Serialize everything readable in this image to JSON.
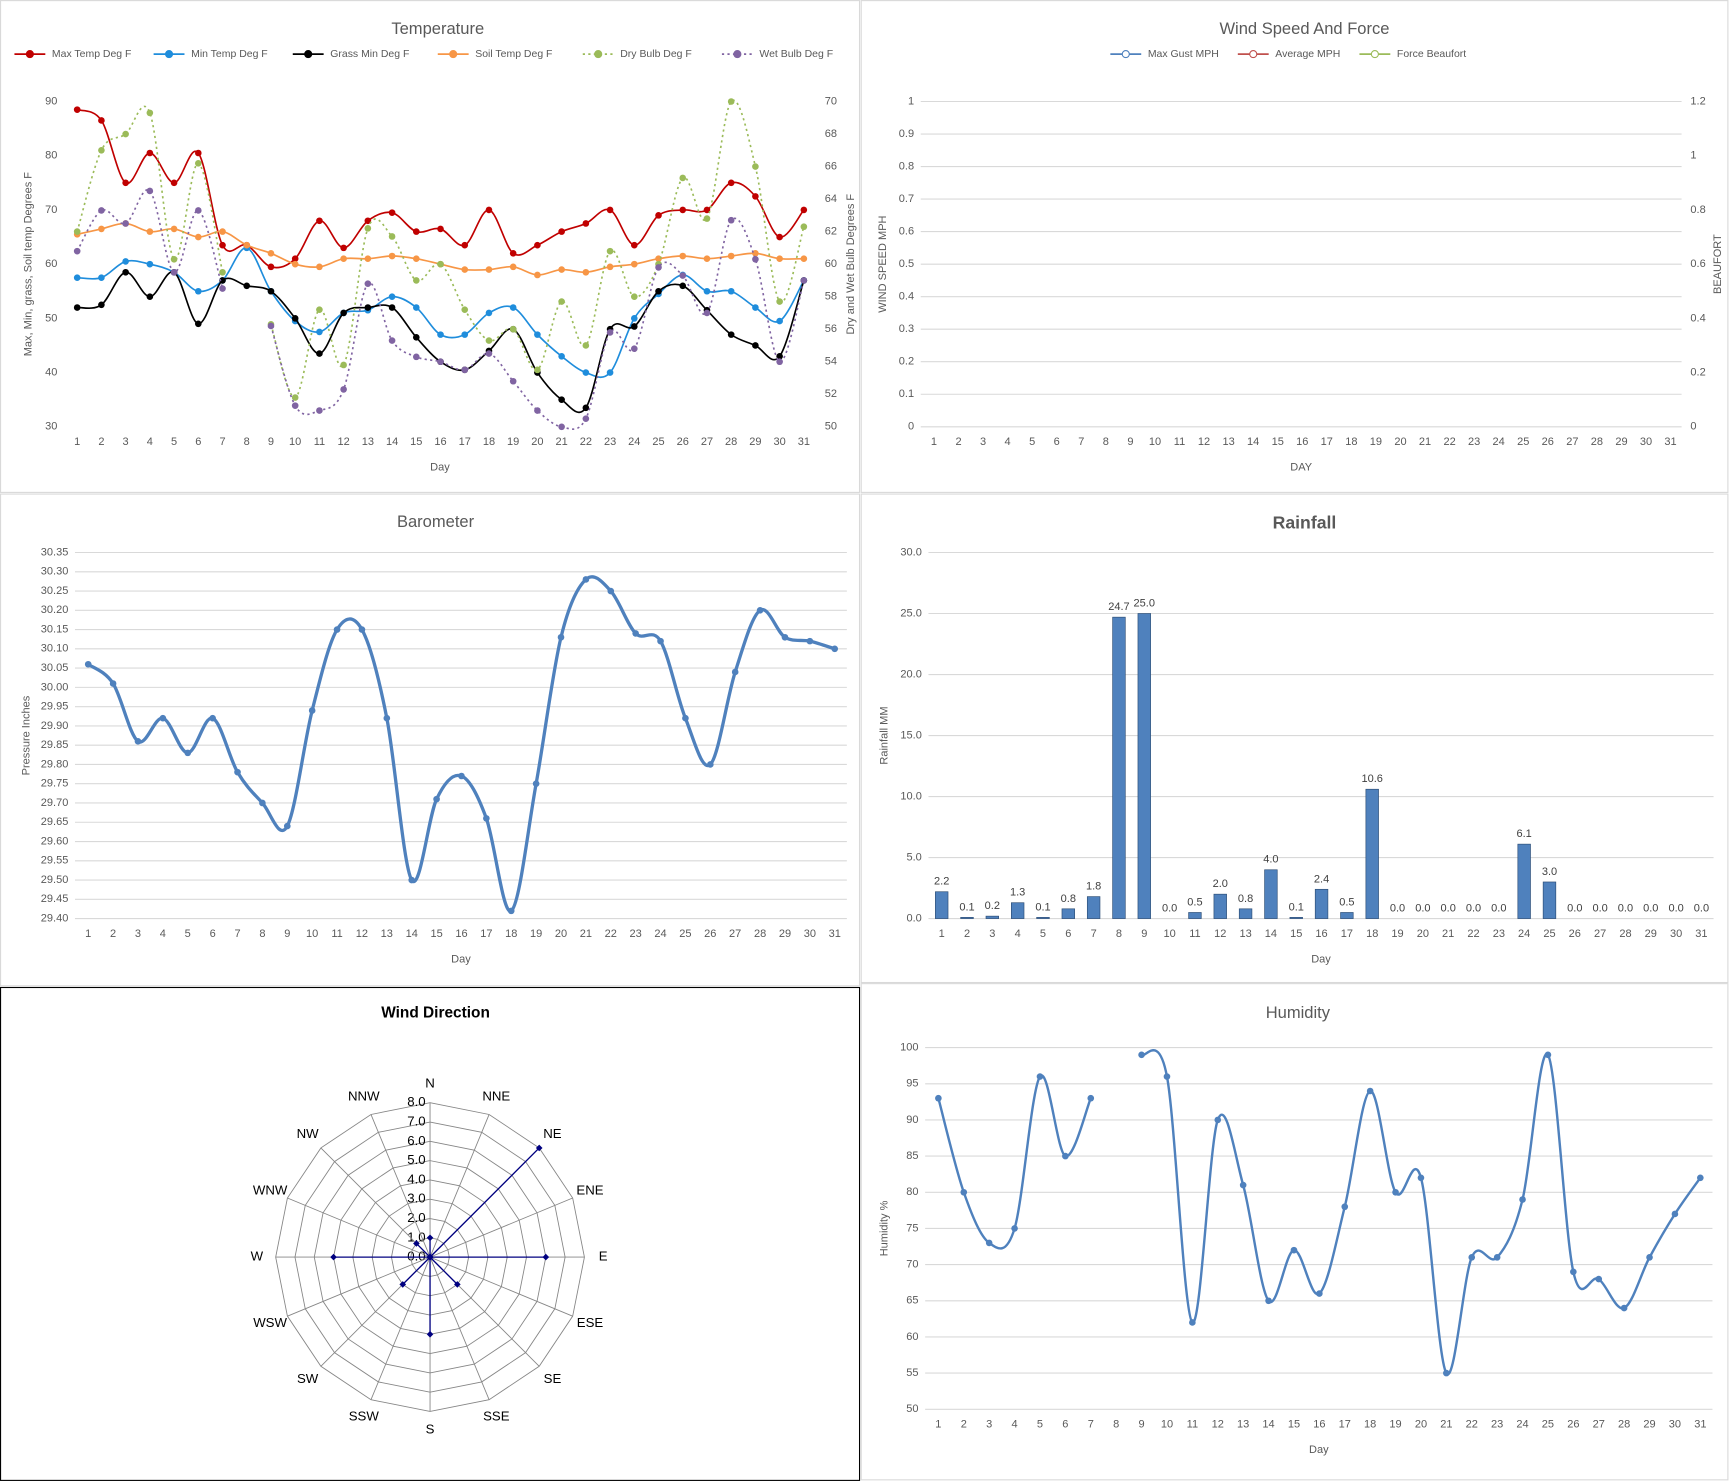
{
  "chart_data": [
    {
      "type": "line",
      "title": "Temperature",
      "x_label": "Day",
      "y_label": "Max, Min, grass, Soil temp Degrees F",
      "y2_label": "Dry and Wet Bulb Degrees F",
      "legend": "top",
      "grid": false,
      "categories": [
        1,
        2,
        3,
        4,
        5,
        6,
        7,
        8,
        9,
        10,
        11,
        12,
        13,
        14,
        15,
        16,
        17,
        18,
        19,
        20,
        21,
        22,
        23,
        24,
        25,
        26,
        27,
        28,
        29,
        30,
        31
      ],
      "ylim": [
        30,
        90
      ],
      "yticks": [
        30,
        40,
        50,
        60,
        70,
        80,
        90
      ],
      "y2lim": [
        50,
        70
      ],
      "y2ticks": [
        50,
        52,
        54,
        56,
        58,
        60,
        62,
        64,
        66,
        68,
        70
      ],
      "series": [
        {
          "name": "Max Temp Deg F",
          "color": "#c00000",
          "values": [
            88.5,
            86.5,
            75,
            80.5,
            75,
            80.5,
            63.5,
            63.5,
            59.5,
            61,
            68,
            63,
            68,
            69.5,
            66,
            66.5,
            63.5,
            70,
            62,
            63.5,
            66,
            67.5,
            70,
            63.5,
            69,
            70,
            70,
            75,
            72.5,
            65,
            70
          ]
        },
        {
          "name": "Min Temp Deg F",
          "color": "#1f8ddc",
          "values": [
            57.5,
            57.5,
            60.5,
            60,
            58.5,
            55,
            57,
            63,
            55,
            49.5,
            47.5,
            51,
            51.5,
            54,
            52,
            47,
            47,
            51,
            52,
            47,
            43,
            40,
            40,
            50,
            54.5,
            58,
            55,
            55,
            52,
            49.5,
            57
          ]
        },
        {
          "name": "Grass Min Deg F",
          "color": "#000000",
          "values": [
            52,
            52.5,
            58.5,
            54,
            58.5,
            49,
            57,
            56,
            55,
            50,
            43.5,
            51,
            52,
            52,
            46.5,
            42,
            40.5,
            44,
            48,
            40,
            35,
            33.5,
            48,
            48.5,
            55,
            56,
            51.5,
            47,
            45,
            43,
            57
          ]
        },
        {
          "name": "Soil Temp Deg F",
          "color": "#f79646",
          "values": [
            65.5,
            66.5,
            67.5,
            66,
            66.5,
            65,
            66,
            63.5,
            62,
            60,
            59.5,
            61,
            61,
            61.5,
            61,
            60,
            59,
            59,
            59.5,
            58,
            59,
            58.5,
            59.5,
            60,
            61,
            61.5,
            61,
            61.5,
            62,
            61,
            61
          ]
        },
        {
          "name": "Dry Bulb Deg F",
          "color": "#9bbb59",
          "dashed": true,
          "axis": "y2",
          "values": [
            62,
            67,
            68,
            69.3,
            60.3,
            66.2,
            59.5,
            null,
            56.3,
            51.8,
            57.2,
            53.8,
            62.2,
            61.7,
            59,
            60,
            57.2,
            55.3,
            56,
            53.5,
            57.7,
            55,
            60.8,
            58,
            60,
            65.3,
            62.8,
            70,
            66,
            57.7,
            62.3
          ]
        },
        {
          "name": "Wet Bulb Deg F",
          "color": "#8064a2",
          "dashed": true,
          "axis": "y2",
          "values": [
            60.8,
            63.3,
            62.5,
            64.5,
            59.5,
            63.3,
            58.5,
            null,
            56.2,
            51.3,
            51,
            52.3,
            58.8,
            55.3,
            54.3,
            54,
            53.5,
            54.5,
            52.8,
            51,
            50,
            50.5,
            55.8,
            54.8,
            59.8,
            59.3,
            57,
            62.7,
            60.3,
            54,
            59
          ]
        }
      ]
    },
    {
      "type": "line",
      "title": "Wind Speed And Force",
      "x_label": "DAY",
      "y_label": "WIND SPEED MPH",
      "y2_label": "BEAUFORT",
      "legend": "top",
      "grid": true,
      "categories": [
        1,
        2,
        3,
        4,
        5,
        6,
        7,
        8,
        9,
        10,
        11,
        12,
        13,
        14,
        15,
        16,
        17,
        18,
        19,
        20,
        21,
        22,
        23,
        24,
        25,
        26,
        27,
        28,
        29,
        30,
        31
      ],
      "ylim": [
        0,
        1
      ],
      "yticks": [
        0,
        0.1,
        0.2,
        0.3,
        0.4,
        0.5,
        0.6,
        0.7,
        0.8,
        0.9,
        1
      ],
      "y2lim": [
        0,
        1.2
      ],
      "y2ticks": [
        0,
        0.2,
        0.4,
        0.6,
        0.8,
        1,
        1.2
      ],
      "series": [
        {
          "name": "Max Gust MPH",
          "color": "#4f81bd",
          "values": [
            null,
            null,
            null,
            null,
            null,
            null,
            null,
            null,
            null,
            null,
            null,
            null,
            null,
            null,
            null,
            null,
            null,
            null,
            null,
            null,
            null,
            null,
            null,
            null,
            null,
            null,
            null,
            null,
            null,
            null,
            null
          ]
        },
        {
          "name": "Average MPH",
          "color": "#c0504d",
          "values": [
            null,
            null,
            null,
            null,
            null,
            null,
            null,
            null,
            null,
            null,
            null,
            null,
            null,
            null,
            null,
            null,
            null,
            null,
            null,
            null,
            null,
            null,
            null,
            null,
            null,
            null,
            null,
            null,
            null,
            null,
            null
          ]
        },
        {
          "name": "Force Beaufort",
          "color": "#9bbb59",
          "axis": "y2",
          "values": [
            null,
            null,
            null,
            null,
            null,
            null,
            null,
            null,
            null,
            null,
            null,
            null,
            null,
            null,
            null,
            null,
            null,
            null,
            null,
            null,
            null,
            null,
            null,
            null,
            null,
            null,
            null,
            null,
            null,
            null,
            null
          ]
        }
      ]
    },
    {
      "type": "line",
      "title": "Barometer",
      "x_label": "Day",
      "y_label": "Pressure Inches",
      "grid": true,
      "categories": [
        1,
        2,
        3,
        4,
        5,
        6,
        7,
        8,
        9,
        10,
        11,
        12,
        13,
        14,
        15,
        16,
        17,
        18,
        19,
        20,
        21,
        22,
        23,
        24,
        25,
        26,
        27,
        28,
        29,
        30,
        31
      ],
      "ylim": [
        29.4,
        30.35
      ],
      "yticks": [
        {
          "value": 29.4,
          "label": "29.40"
        },
        29.45,
        {
          "value": 29.5,
          "label": "29.50"
        },
        29.55,
        {
          "value": 29.6,
          "label": "29.60"
        },
        29.65,
        {
          "value": 29.7,
          "label": "29.70"
        },
        29.75,
        {
          "value": 29.8,
          "label": "29.80"
        },
        29.85,
        {
          "value": 29.9,
          "label": "29.90"
        },
        29.95,
        {
          "value": 30,
          "label": "30.00"
        },
        30.05,
        {
          "value": 30.1,
          "label": "30.10"
        },
        30.15,
        {
          "value": 30.2,
          "label": "30.20"
        },
        30.25,
        {
          "value": 30.3,
          "label": "30.30"
        },
        30.35
      ],
      "series": [
        {
          "name": "Pressure",
          "color": "#4f81bd",
          "values": [
            30.06,
            30.01,
            29.86,
            29.92,
            29.83,
            29.92,
            29.78,
            29.7,
            29.64,
            29.94,
            30.15,
            30.15,
            29.92,
            29.5,
            29.71,
            29.77,
            29.66,
            29.42,
            29.75,
            30.13,
            30.28,
            30.25,
            30.14,
            30.12,
            29.92,
            29.8,
            30.04,
            30.2,
            30.13,
            30.12,
            30.1
          ]
        }
      ]
    },
    {
      "type": "bar",
      "title": "Rainfall",
      "x_label": "Day",
      "y_label": "Rainfall MM",
      "grid": true,
      "color": "#4f81bd",
      "categories": [
        1,
        2,
        3,
        4,
        5,
        6,
        7,
        8,
        9,
        10,
        11,
        12,
        13,
        14,
        15,
        16,
        17,
        18,
        19,
        20,
        21,
        22,
        23,
        24,
        25,
        26,
        27,
        28,
        29,
        30,
        31
      ],
      "ylim": [
        0,
        30
      ],
      "yticks": [
        {
          "value": 0,
          "label": "0.0"
        },
        {
          "value": 5,
          "label": "5.0"
        },
        {
          "value": 10,
          "label": "10.0"
        },
        {
          "value": 15,
          "label": "15.0"
        },
        {
          "value": 20,
          "label": "20.0"
        },
        {
          "value": 25,
          "label": "25.0"
        },
        {
          "value": 30,
          "label": "30.0"
        }
      ],
      "values": [
        2.2,
        0.1,
        0.2,
        1.3,
        0.1,
        0.8,
        1.8,
        24.7,
        25,
        0,
        0.5,
        2,
        0.8,
        4,
        0.1,
        2.4,
        0.5,
        10.6,
        0,
        0,
        0,
        0,
        0,
        6.1,
        3,
        0,
        0,
        0,
        0,
        0,
        0
      ],
      "value_labels": [
        "2.2",
        "0.1",
        "0.2",
        "1.3",
        "0.1",
        "0.8",
        "1.8",
        "24.7",
        "25.0",
        "0.0",
        "0.5",
        "2.0",
        "0.8",
        "4.0",
        "0.1",
        "2.4",
        "0.5",
        "10.6",
        "0.0",
        "0.0",
        "0.0",
        "0.0",
        "0.0",
        "6.1",
        "3.0",
        "0.0",
        "0.0",
        "0.0",
        "0.0",
        "0.0",
        "0.0"
      ]
    },
    {
      "type": "radar",
      "title": "Wind Direction",
      "color": "#000080",
      "categories": [
        "N",
        "NNE",
        "NE",
        "ENE",
        "E",
        "ESE",
        "SE",
        "SSE",
        "S",
        "SSW",
        "SW",
        "WSW",
        "W",
        "WNW",
        "NW",
        "NNW"
      ],
      "values": [
        1,
        0,
        8,
        0,
        6,
        0,
        2,
        0,
        4,
        0,
        2,
        0,
        5,
        0,
        1,
        0
      ],
      "rlim": [
        0,
        8
      ],
      "rticks": [
        {
          "value": 0,
          "label": "0.0"
        },
        {
          "value": 1,
          "label": "1.0"
        },
        {
          "value": 2,
          "label": "2.0"
        },
        {
          "value": 3,
          "label": "3.0"
        },
        {
          "value": 4,
          "label": "4.0"
        },
        {
          "value": 5,
          "label": "5.0"
        },
        {
          "value": 6,
          "label": "6.0"
        },
        {
          "value": 7,
          "label": "7.0"
        },
        {
          "value": 8,
          "label": "8.0"
        }
      ]
    },
    {
      "type": "line",
      "title": "Humidity",
      "x_label": "Day",
      "y_label": "Humidity %",
      "grid": true,
      "categories": [
        1,
        2,
        3,
        4,
        5,
        6,
        7,
        8,
        9,
        10,
        11,
        12,
        13,
        14,
        15,
        16,
        17,
        18,
        19,
        20,
        21,
        22,
        23,
        24,
        25,
        26,
        27,
        28,
        29,
        30,
        31
      ],
      "ylim": [
        50,
        100
      ],
      "yticks": [
        50,
        55,
        60,
        65,
        70,
        75,
        80,
        85,
        90,
        95,
        100
      ],
      "series": [
        {
          "name": "Humidity",
          "color": "#4f81bd",
          "values": [
            93,
            80,
            73,
            75,
            96,
            85,
            93,
            null,
            99,
            96,
            62,
            90,
            81,
            65,
            72,
            66,
            78,
            94,
            80,
            82,
            55,
            71,
            71,
            79,
            99,
            69,
            68,
            64,
            71,
            77,
            82
          ]
        }
      ]
    }
  ]
}
